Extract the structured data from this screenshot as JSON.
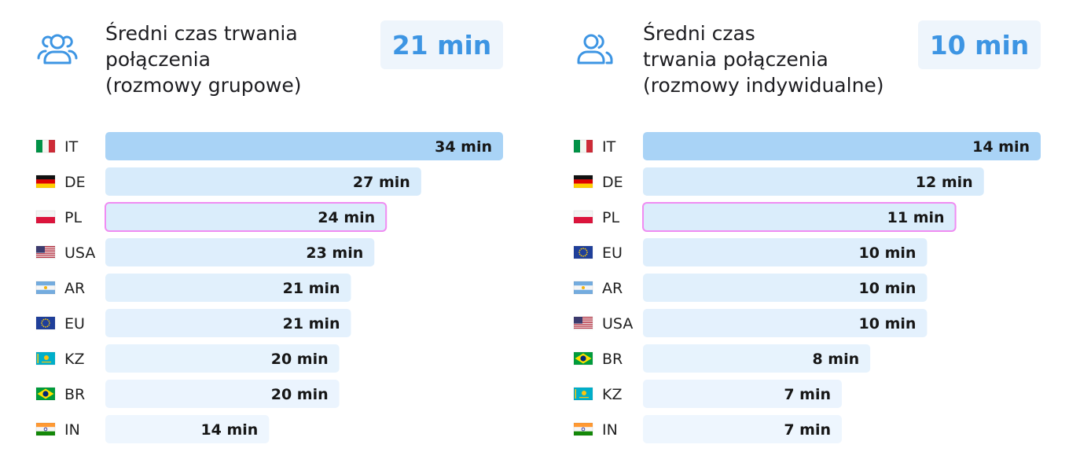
{
  "panels": [
    {
      "title": "Średni czas trwania\npołączenia\n(rozmowy grupowe)",
      "badge": "21 min",
      "icon": "group-users-icon"
    },
    {
      "title": "Średni czas\ntrwania połączenia\n(rozmowy indywidualne)",
      "badge": "10 min",
      "icon": "users-icon"
    }
  ],
  "colors": {
    "bar_top": "#a9d3f6",
    "bar_mid": "#d7ebfb",
    "bar_light": "#eaf4fd",
    "highlight_border": "#f08cf2",
    "accent": "#3d95e3"
  },
  "chart_data": [
    {
      "type": "bar",
      "orientation": "horizontal",
      "unit": "min",
      "highlight": "PL",
      "categories": [
        "IT",
        "DE",
        "PL",
        "USA",
        "AR",
        "EU",
        "KZ",
        "BR",
        "IN"
      ],
      "flags": [
        "it-flag-icon",
        "de-flag-icon",
        "pl-flag-icon",
        "us-flag-icon",
        "ar-flag-icon",
        "eu-flag-icon",
        "kz-flag-icon",
        "br-flag-icon",
        "in-flag-icon"
      ],
      "values": [
        34,
        27,
        24,
        23,
        21,
        21,
        20,
        20,
        14
      ],
      "labels": [
        "34 min",
        "27 min",
        "24 min",
        "23 min",
        "21 min",
        "21 min",
        "20 min",
        "20 min",
        "14 min"
      ],
      "xlim": [
        0,
        34
      ]
    },
    {
      "type": "bar",
      "orientation": "horizontal",
      "unit": "min",
      "highlight": "PL",
      "categories": [
        "IT",
        "DE",
        "PL",
        "EU",
        "AR",
        "USA",
        "BR",
        "KZ",
        "IN"
      ],
      "flags": [
        "it-flag-icon",
        "de-flag-icon",
        "pl-flag-icon",
        "eu-flag-icon",
        "ar-flag-icon",
        "us-flag-icon",
        "br-flag-icon",
        "kz-flag-icon",
        "in-flag-icon"
      ],
      "values": [
        14,
        12,
        11,
        10,
        10,
        10,
        8,
        7,
        7
      ],
      "labels": [
        "14 min",
        "12 min",
        "11 min",
        "10 min",
        "10 min",
        "10 min",
        "8 min",
        "7 min",
        "7 min"
      ],
      "xlim": [
        0,
        14
      ]
    }
  ]
}
